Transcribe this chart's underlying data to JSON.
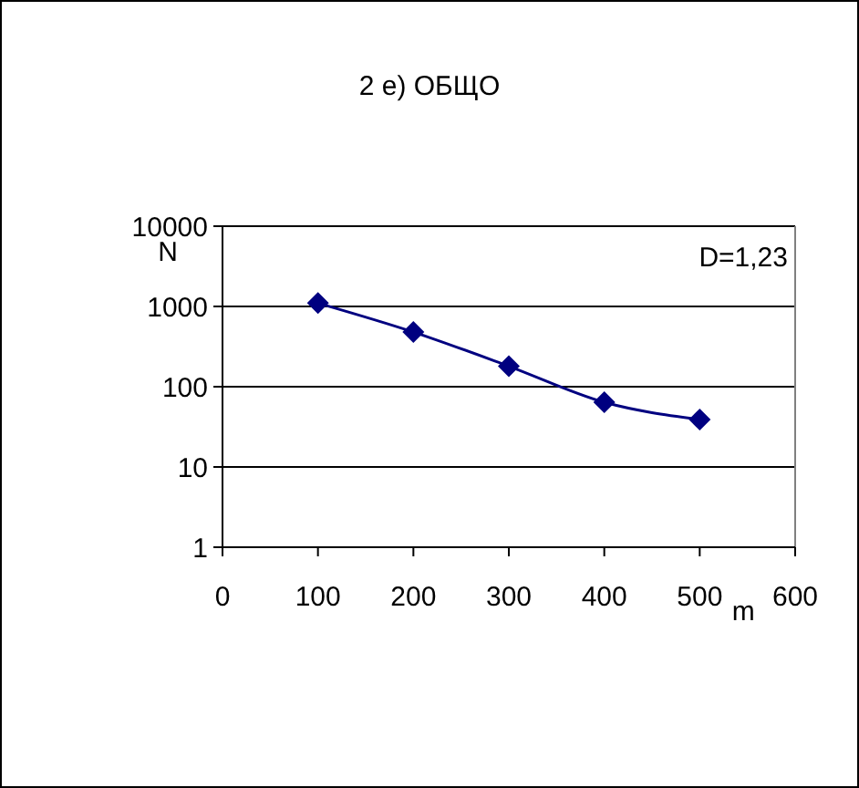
{
  "chart_data": {
    "type": "line",
    "title": "2 е) ОБЩО",
    "xlabel": "m",
    "ylabel": "N",
    "annotations": [
      "D=1,23"
    ],
    "x": [
      100,
      200,
      300,
      400,
      500
    ],
    "series": [
      {
        "color": "#000080",
        "values": [
          1100,
          480,
          180,
          64,
          39
        ]
      }
    ],
    "xlim": [
      0,
      600
    ],
    "xticks": [
      0,
      100,
      200,
      300,
      400,
      500,
      600
    ],
    "ylim": [
      1,
      10000
    ],
    "yticks": [
      1,
      10,
      100,
      1000,
      10000
    ],
    "log": "y",
    "grid": "y",
    "marker": "diamond",
    "line_style": "solid"
  }
}
